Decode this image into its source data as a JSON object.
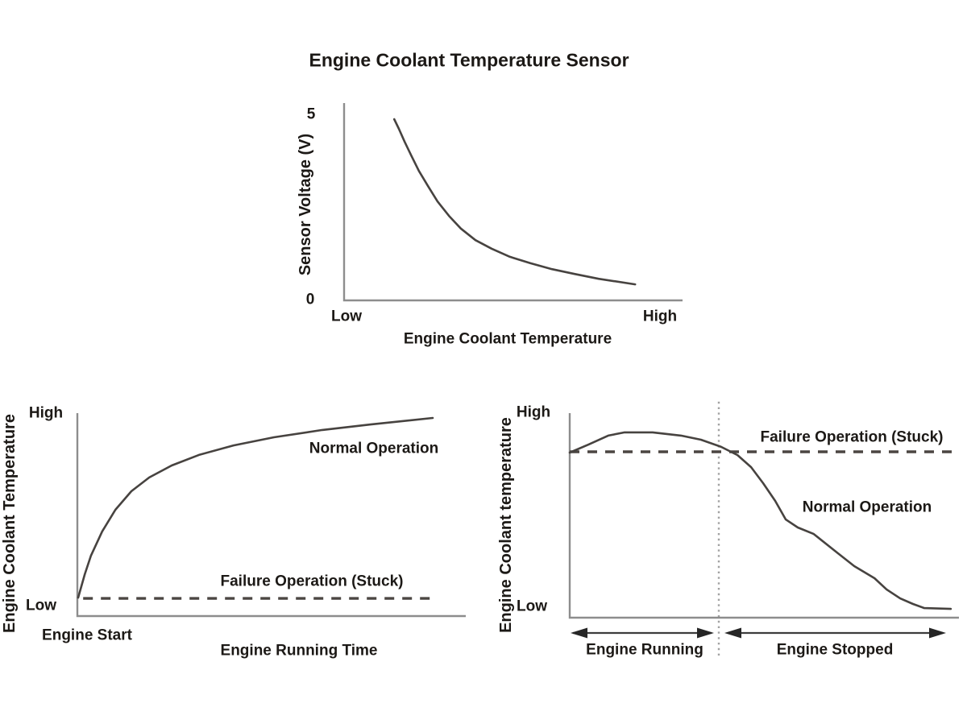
{
  "title": "Engine Coolant Temperature Sensor",
  "colors": {
    "background": "#ffffff",
    "text": "#1c1916",
    "axis": "#8d8d8d",
    "curve": "#474340",
    "dashed_line": "#4b4642",
    "dotted_divider": "#a2a2a2",
    "arrow": "#3c3c3c"
  },
  "chart_data": [
    {
      "type": "line",
      "title": "Engine Coolant Temperature Sensor",
      "xlabel": "Engine Coolant Temperature",
      "ylabel": "Sensor Voltage (V)",
      "x_tick_labels": {
        "low": "Low",
        "high": "High"
      },
      "y_tick_labels": {
        "min": "0",
        "max": "5"
      },
      "ylim": [
        0,
        5
      ],
      "xlim": [
        0,
        1
      ],
      "grid": false,
      "legend": "none",
      "series": [
        {
          "name": "Sensor voltage vs coolant temperature",
          "style": "solid",
          "points": [
            [
              0.148,
              4.87
            ],
            [
              0.162,
              4.61
            ],
            [
              0.179,
              4.26
            ],
            [
              0.198,
              3.9
            ],
            [
              0.221,
              3.48
            ],
            [
              0.248,
              3.07
            ],
            [
              0.276,
              2.66
            ],
            [
              0.31,
              2.27
            ],
            [
              0.345,
              1.93
            ],
            [
              0.388,
              1.62
            ],
            [
              0.436,
              1.39
            ],
            [
              0.49,
              1.17
            ],
            [
              0.55,
              1.0
            ],
            [
              0.614,
              0.84
            ],
            [
              0.681,
              0.71
            ],
            [
              0.752,
              0.58
            ],
            [
              0.86,
              0.43
            ]
          ]
        }
      ]
    },
    {
      "type": "line",
      "xlabel": "Engine Running Time",
      "ylabel": "Engine Coolant Temperature",
      "origin_label": "Engine Start",
      "y_tick_labels": {
        "min": "Low",
        "max": "High"
      },
      "ylim": [
        "Low",
        "High"
      ],
      "xlim": [
        0,
        1
      ],
      "grid": false,
      "legend": "none",
      "series": [
        {
          "name": "Normal Operation",
          "style": "solid",
          "points": [
            [
              0.002,
              0.091
            ],
            [
              0.019,
              0.206
            ],
            [
              0.035,
              0.298
            ],
            [
              0.064,
              0.417
            ],
            [
              0.098,
              0.524
            ],
            [
              0.139,
              0.615
            ],
            [
              0.185,
              0.683
            ],
            [
              0.243,
              0.742
            ],
            [
              0.313,
              0.794
            ],
            [
              0.402,
              0.841
            ],
            [
              0.506,
              0.881
            ],
            [
              0.631,
              0.917
            ],
            [
              0.755,
              0.944
            ],
            [
              0.915,
              0.976
            ]
          ]
        },
        {
          "name": "Failure Operation (Stuck)",
          "style": "dashed",
          "points": [
            [
              0.015,
              0.087
            ],
            [
              0.917,
              0.087
            ]
          ]
        }
      ]
    },
    {
      "type": "line",
      "xlabel": "",
      "ylabel": "Engine Coolant temperature",
      "y_tick_labels": {
        "min": "Low",
        "max": "High"
      },
      "ylim": [
        "Low",
        "High"
      ],
      "xlim": [
        0,
        1
      ],
      "grid": false,
      "legend": "none",
      "series": [
        {
          "name": "Normal Operation",
          "style": "solid",
          "points": [
            [
              0.0,
              0.807
            ],
            [
              0.048,
              0.846
            ],
            [
              0.099,
              0.89
            ],
            [
              0.141,
              0.906
            ],
            [
              0.213,
              0.906
            ],
            [
              0.286,
              0.89
            ],
            [
              0.337,
              0.87
            ],
            [
              0.389,
              0.835
            ],
            [
              0.431,
              0.795
            ],
            [
              0.466,
              0.736
            ],
            [
              0.497,
              0.657
            ],
            [
              0.528,
              0.571
            ],
            [
              0.555,
              0.48
            ],
            [
              0.586,
              0.441
            ],
            [
              0.627,
              0.409
            ],
            [
              0.689,
              0.315
            ],
            [
              0.731,
              0.252
            ],
            [
              0.783,
              0.193
            ],
            [
              0.814,
              0.138
            ],
            [
              0.849,
              0.094
            ],
            [
              0.882,
              0.067
            ],
            [
              0.911,
              0.047
            ],
            [
              0.979,
              0.043
            ]
          ]
        },
        {
          "name": "Failure Operation (Stuck)",
          "style": "dashed",
          "points": [
            [
              0.0,
              0.811
            ],
            [
              0.988,
              0.811
            ]
          ]
        }
      ],
      "divider_x": 0.383,
      "divider_points": [
        [
          0.383,
          -0.185
        ],
        [
          0.383,
          1.059
        ]
      ],
      "phases": [
        {
          "label": "Engine Running",
          "span": [
            0.008,
            0.364
          ]
        },
        {
          "label": "Engine Stopped",
          "span": [
            0.406,
            0.959
          ]
        }
      ],
      "phase_arrows": [
        [
          [
            0.008,
            -0.0748
          ],
          [
            0.364,
            -0.0748
          ]
        ],
        [
          [
            0.406,
            -0.0748
          ],
          [
            0.959,
            -0.0748
          ]
        ]
      ]
    }
  ]
}
